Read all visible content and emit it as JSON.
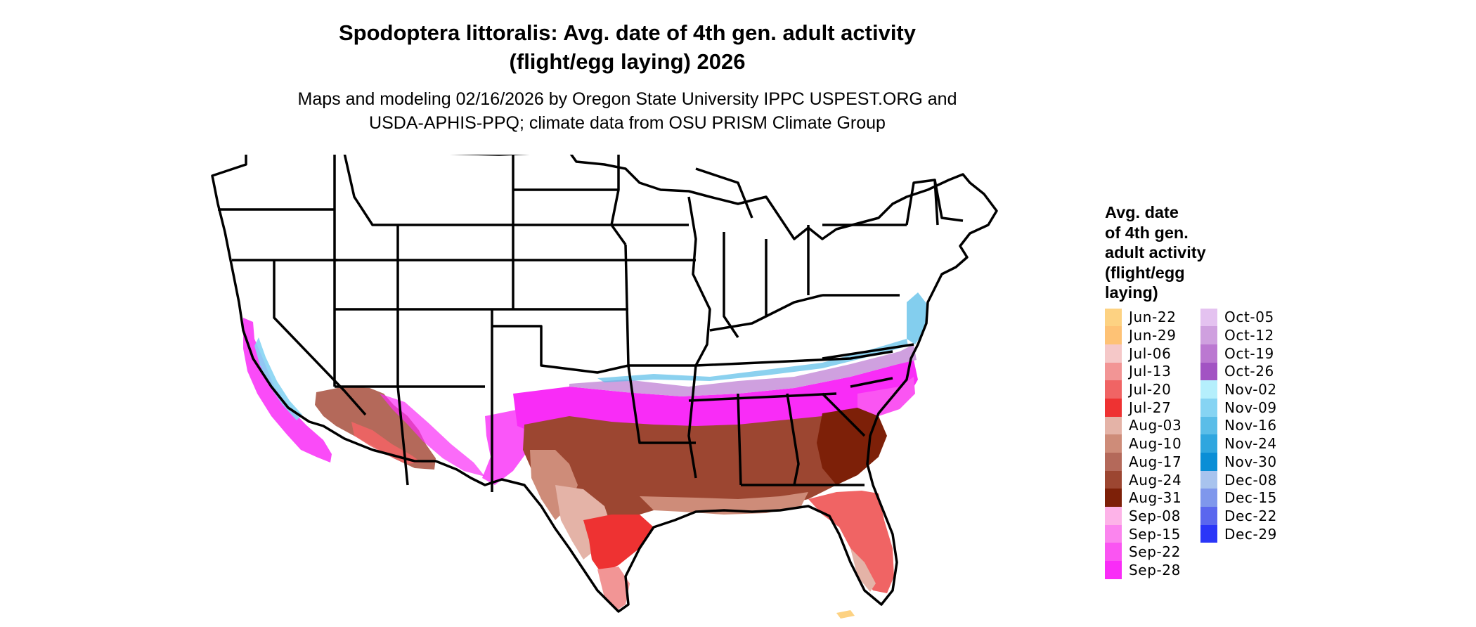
{
  "title_line1": "Spodoptera littoralis: Avg. date of 4th gen. adult activity",
  "title_line2": "(flight/egg laying) 2026",
  "subtitle_line1": "Maps and modeling 02/16/2026 by Oregon State University IPPC USPEST.ORG and",
  "subtitle_line2": "USDA-APHIS-PPQ; climate data from OSU PRISM Climate Group",
  "legend": {
    "title": [
      "Avg. date",
      "of 4th gen.",
      "adult activity",
      "(flight/egg",
      "laying)"
    ],
    "items": [
      {
        "label": "Jun-22",
        "color": "#FDD282"
      },
      {
        "label": "Jun-29",
        "color": "#FEC275"
      },
      {
        "label": "Jul-06",
        "color": "#F5C8C8"
      },
      {
        "label": "Jul-13",
        "color": "#F29595"
      },
      {
        "label": "Jul-20",
        "color": "#F06464"
      },
      {
        "label": "Jul-27",
        "color": "#EE3232"
      },
      {
        "label": "Aug-03",
        "color": "#E4B3A7"
      },
      {
        "label": "Aug-10",
        "color": "#CE8C79"
      },
      {
        "label": "Aug-17",
        "color": "#B4695A"
      },
      {
        "label": "Aug-24",
        "color": "#9C4631"
      },
      {
        "label": "Aug-31",
        "color": "#7D2008"
      },
      {
        "label": "Sep-08",
        "color": "#FDB3E8"
      },
      {
        "label": "Sep-15",
        "color": "#FB85EE"
      },
      {
        "label": "Sep-22",
        "color": "#FA55F2"
      },
      {
        "label": "Sep-28",
        "color": "#F92CF7"
      },
      {
        "label": "Oct-05",
        "color": "#E4C2F0"
      },
      {
        "label": "Oct-12",
        "color": "#CFA0DF"
      },
      {
        "label": "Oct-19",
        "color": "#BB78D1"
      },
      {
        "label": "Oct-26",
        "color": "#A253C3"
      },
      {
        "label": "Nov-02",
        "color": "#B5EFFC"
      },
      {
        "label": "Nov-09",
        "color": "#86D4F3"
      },
      {
        "label": "Nov-16",
        "color": "#5ABDE8"
      },
      {
        "label": "Nov-24",
        "color": "#2FA6DF"
      },
      {
        "label": "Nov-30",
        "color": "#0A8ED6"
      },
      {
        "label": "Dec-08",
        "color": "#A8C3EE"
      },
      {
        "label": "Dec-15",
        "color": "#7F97EC"
      },
      {
        "label": "Dec-22",
        "color": "#5A67EE"
      },
      {
        "label": "Dec-29",
        "color": "#2A36F8"
      }
    ]
  }
}
